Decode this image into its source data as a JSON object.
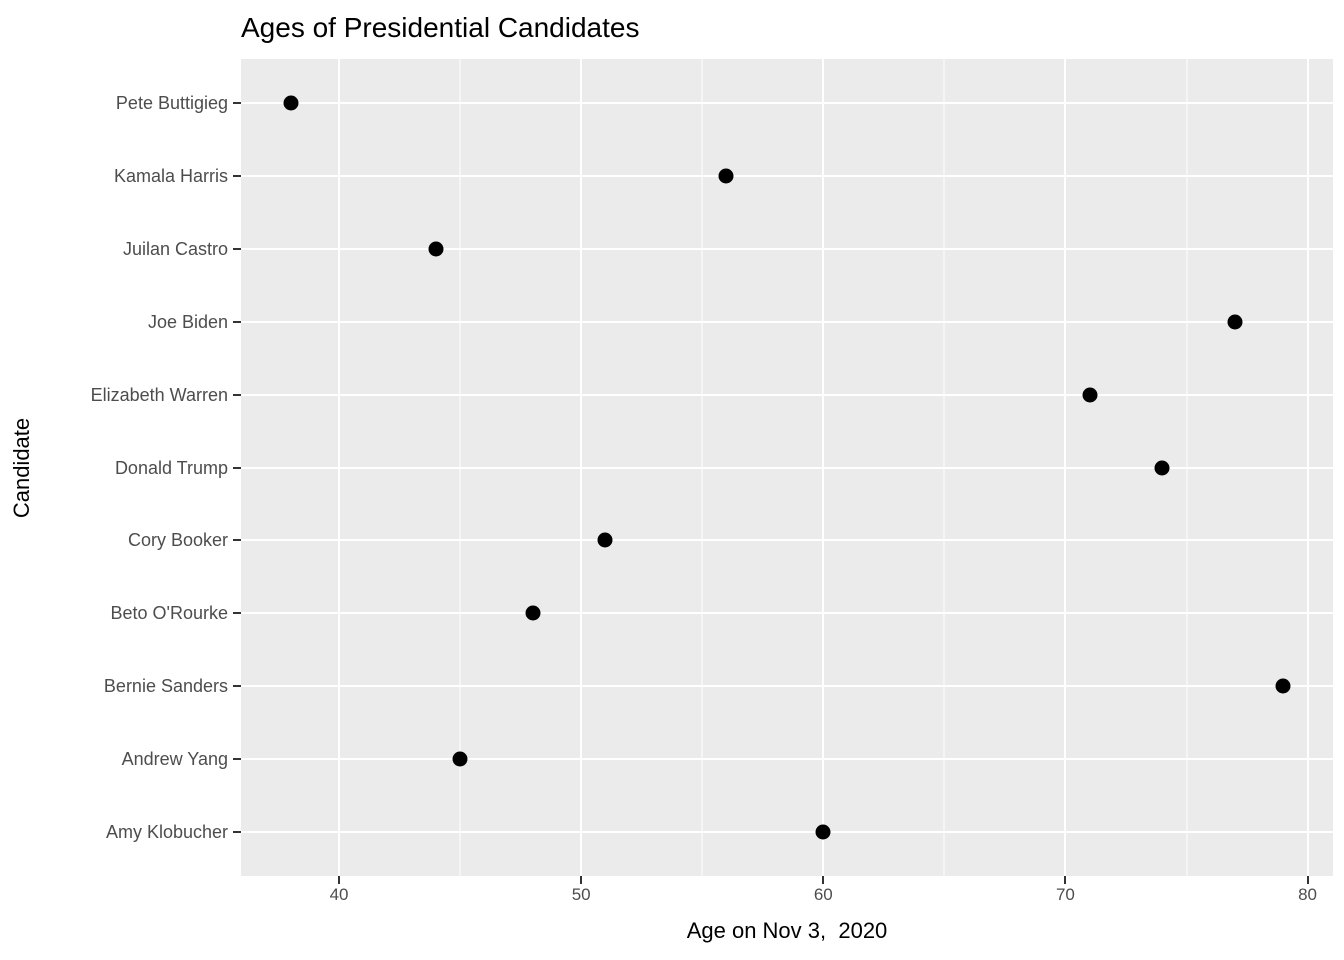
{
  "chart_data": {
    "type": "scatter",
    "title": "Ages of Presidential Candidates",
    "xlabel": "Age on Nov 3,  2020",
    "ylabel": "Candidate",
    "categories": [
      "Pete Buttigieg",
      "Kamala Harris",
      "Juilan Castro",
      "Joe Biden",
      "Elizabeth Warren",
      "Donald Trump",
      "Cory Booker",
      "Beto O'Rourke",
      "Bernie Sanders",
      "Andrew Yang",
      "Amy Klobucher"
    ],
    "values": [
      38,
      56,
      44,
      77,
      71,
      74,
      51,
      48,
      79,
      45,
      60
    ],
    "xlim": [
      35.95,
      81.05
    ],
    "x_major_ticks": [
      40,
      50,
      60,
      70,
      80
    ],
    "x_minor_ticks": [
      45,
      55,
      65,
      75
    ],
    "grid": true,
    "legend": false,
    "colors": {
      "point": "#000000",
      "panel_bg": "#EBEBEB",
      "grid": "#FFFFFF",
      "tick_text": "#4D4D4D",
      "axis_tick": "#333333",
      "title_text": "#000000"
    }
  }
}
